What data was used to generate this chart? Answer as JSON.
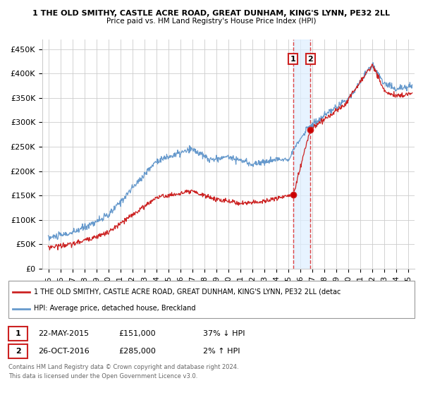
{
  "title": "1 THE OLD SMITHY, CASTLE ACRE ROAD, GREAT DUNHAM, KING'S LYNN, PE32 2LL",
  "subtitle": "Price paid vs. HM Land Registry's House Price Index (HPI)",
  "ylabel_ticks": [
    "£0",
    "£50K",
    "£100K",
    "£150K",
    "£200K",
    "£250K",
    "£300K",
    "£350K",
    "£400K",
    "£450K"
  ],
  "ytick_values": [
    0,
    50000,
    100000,
    150000,
    200000,
    250000,
    300000,
    350000,
    400000,
    450000
  ],
  "ylim": [
    0,
    470000
  ],
  "xlim_start": 1994.5,
  "xlim_end": 2025.5,
  "hpi_color": "#6699cc",
  "price_color": "#cc2222",
  "vline_color": "#dd4444",
  "vband_color": "#ddeeff",
  "annotation_box_color": "#cc2222",
  "grid_color": "#cccccc",
  "background_color": "#ffffff",
  "legend_label_red": "1 THE OLD SMITHY, CASTLE ACRE ROAD, GREAT DUNHAM, KING'S LYNN, PE32 2LL (detac",
  "legend_label_blue": "HPI: Average price, detached house, Breckland",
  "transaction1_label": "1",
  "transaction1_date": "22-MAY-2015",
  "transaction1_price": "£151,000",
  "transaction1_hpi": "37% ↓ HPI",
  "transaction1_x": 2015.38,
  "transaction1_y": 151000,
  "transaction2_label": "2",
  "transaction2_date": "26-OCT-2016",
  "transaction2_price": "£285,000",
  "transaction2_hpi": "2% ↑ HPI",
  "transaction2_x": 2016.82,
  "transaction2_y": 285000,
  "footer1": "Contains HM Land Registry data © Crown copyright and database right 2024.",
  "footer2": "This data is licensed under the Open Government Licence v3.0."
}
